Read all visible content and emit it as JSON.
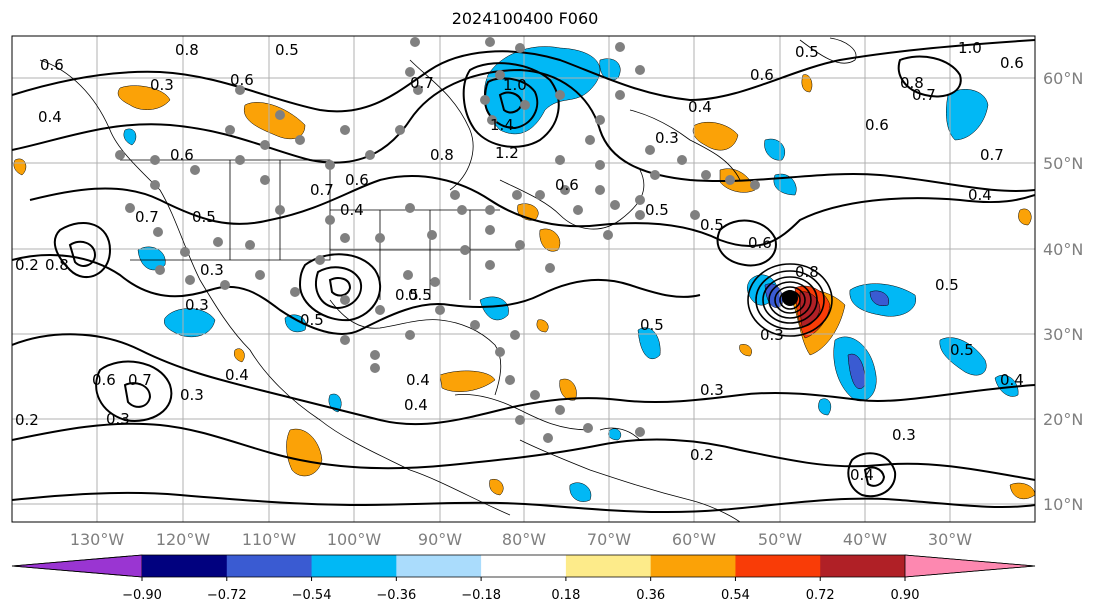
{
  "title": "2024100400 F060",
  "axes": {
    "lon_labels": [
      "130°W",
      "120°W",
      "110°W",
      "100°W",
      "90°W",
      "80°W",
      "70°W",
      "60°W",
      "50°W",
      "40°W",
      "30°W"
    ],
    "lat_labels": [
      "60°N",
      "50°N",
      "40°N",
      "30°N",
      "20°N",
      "10°N"
    ]
  },
  "colorbar": {
    "tick_labels": [
      "−0.90",
      "−0.72",
      "−0.54",
      "−0.36",
      "−0.18",
      "0.18",
      "0.36",
      "0.54",
      "0.72",
      "0.90"
    ],
    "colors": [
      "#9a35d2",
      "#01017f",
      "#3a5bd2",
      "#01b8f5",
      "#aadcfc",
      "#ffffff",
      "#fdeb8a",
      "#fba207",
      "#f93c07",
      "#b02026",
      "#fd88b0"
    ]
  },
  "contour_labels": [
    {
      "id": "c1",
      "text": "0.5"
    },
    {
      "id": "c2",
      "text": "0.8"
    },
    {
      "id": "c3",
      "text": "0.6"
    },
    {
      "id": "c4",
      "text": "0.3"
    },
    {
      "id": "c5",
      "text": "0.4"
    },
    {
      "id": "c6",
      "text": "0.6"
    },
    {
      "id": "c7",
      "text": "0.7"
    },
    {
      "id": "c8",
      "text": "1.0"
    },
    {
      "id": "c9",
      "text": "1.4"
    },
    {
      "id": "c10",
      "text": "1.2"
    },
    {
      "id": "c11",
      "text": "0.8"
    },
    {
      "id": "c12",
      "text": "0.6"
    },
    {
      "id": "c13",
      "text": "0.5"
    },
    {
      "id": "c14",
      "text": "0.3"
    },
    {
      "id": "c15",
      "text": "0.4"
    },
    {
      "id": "c16",
      "text": "0.5"
    },
    {
      "id": "c17",
      "text": "1.0"
    },
    {
      "id": "c18",
      "text": "0.6"
    },
    {
      "id": "c19",
      "text": "0.8"
    },
    {
      "id": "c20",
      "text": "0.7"
    },
    {
      "id": "c21",
      "text": "0.6"
    },
    {
      "id": "c22",
      "text": "0.7"
    },
    {
      "id": "c23",
      "text": "0.4"
    },
    {
      "id": "c24",
      "text": "0.5"
    },
    {
      "id": "c25",
      "text": "0.6"
    },
    {
      "id": "c26",
      "text": "0.7"
    },
    {
      "id": "c27",
      "text": "0.5"
    },
    {
      "id": "c28",
      "text": "0.6"
    },
    {
      "id": "c29",
      "text": "0.5"
    },
    {
      "id": "c30",
      "text": "0.4"
    },
    {
      "id": "c31",
      "text": "0.8"
    },
    {
      "id": "c32",
      "text": "0.2"
    },
    {
      "id": "c33",
      "text": "0.3"
    },
    {
      "id": "c34",
      "text": "0.4"
    },
    {
      "id": "c35",
      "text": "0.5"
    },
    {
      "id": "c36",
      "text": "0.6"
    },
    {
      "id": "c37",
      "text": "0.7"
    },
    {
      "id": "c38",
      "text": "0.3"
    },
    {
      "id": "c39",
      "text": "0.2"
    },
    {
      "id": "c40",
      "text": "0.4"
    },
    {
      "id": "c41",
      "text": "0.3"
    },
    {
      "id": "c42",
      "text": "0.2"
    },
    {
      "id": "c43",
      "text": "0.5"
    },
    {
      "id": "c44",
      "text": "0.3"
    },
    {
      "id": "c45",
      "text": "0.8"
    },
    {
      "id": "c46",
      "text": "0.6"
    },
    {
      "id": "c47",
      "text": "0.5"
    },
    {
      "id": "c48",
      "text": "0.3"
    },
    {
      "id": "c49",
      "text": "0.4"
    },
    {
      "id": "c50",
      "text": "0.5"
    },
    {
      "id": "c51",
      "text": "0.6"
    },
    {
      "id": "c52",
      "text": "0.4"
    },
    {
      "id": "c53",
      "text": "0.3"
    },
    {
      "id": "c54",
      "text": "0.7"
    },
    {
      "id": "c55",
      "text": "0.5"
    },
    {
      "id": "c56",
      "text": "0.3"
    },
    {
      "id": "c57",
      "text": "0.4"
    }
  ],
  "storm_center_color": "#000000"
}
